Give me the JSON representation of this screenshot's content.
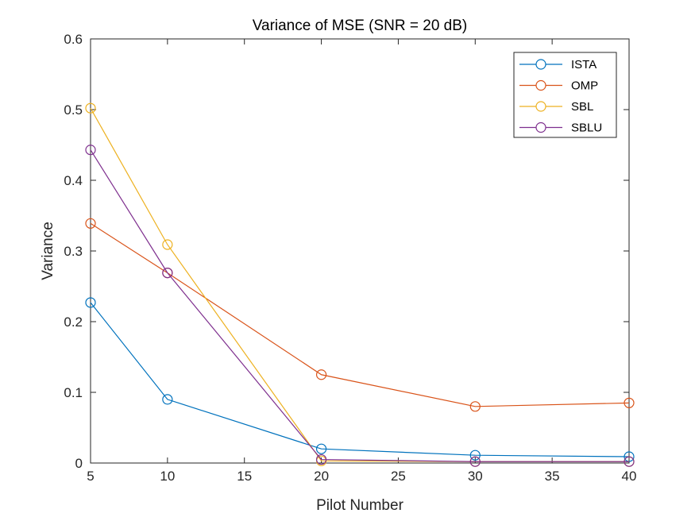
{
  "chart_data": {
    "type": "line",
    "title": "Variance of MSE (SNR = 20 dB)",
    "xlabel": "Pilot Number",
    "ylabel": "Variance",
    "xlim": [
      5,
      40
    ],
    "ylim": [
      0,
      0.6
    ],
    "xticks": [
      "5",
      "10",
      "15",
      "20",
      "25",
      "30",
      "35",
      "40"
    ],
    "yticks": [
      "0",
      "0.1",
      "0.2",
      "0.3",
      "0.4",
      "0.5",
      "0.6"
    ],
    "grid": false,
    "legend_position": "top-right",
    "marker": "circle",
    "x": [
      5,
      10,
      20,
      30,
      40
    ],
    "series": [
      {
        "name": "ISTA",
        "color": "#0072BD",
        "values": [
          0.227,
          0.09,
          0.02,
          0.011,
          0.009
        ]
      },
      {
        "name": "OMP",
        "color": "#D95319",
        "values": [
          0.339,
          0.269,
          0.125,
          0.08,
          0.085
        ]
      },
      {
        "name": "SBL",
        "color": "#EDB120",
        "values": [
          0.502,
          0.309,
          0.003,
          0.002,
          0.002
        ]
      },
      {
        "name": "SBLU",
        "color": "#7E2F8E",
        "values": [
          0.443,
          0.269,
          0.005,
          0.002,
          0.002
        ]
      }
    ]
  }
}
